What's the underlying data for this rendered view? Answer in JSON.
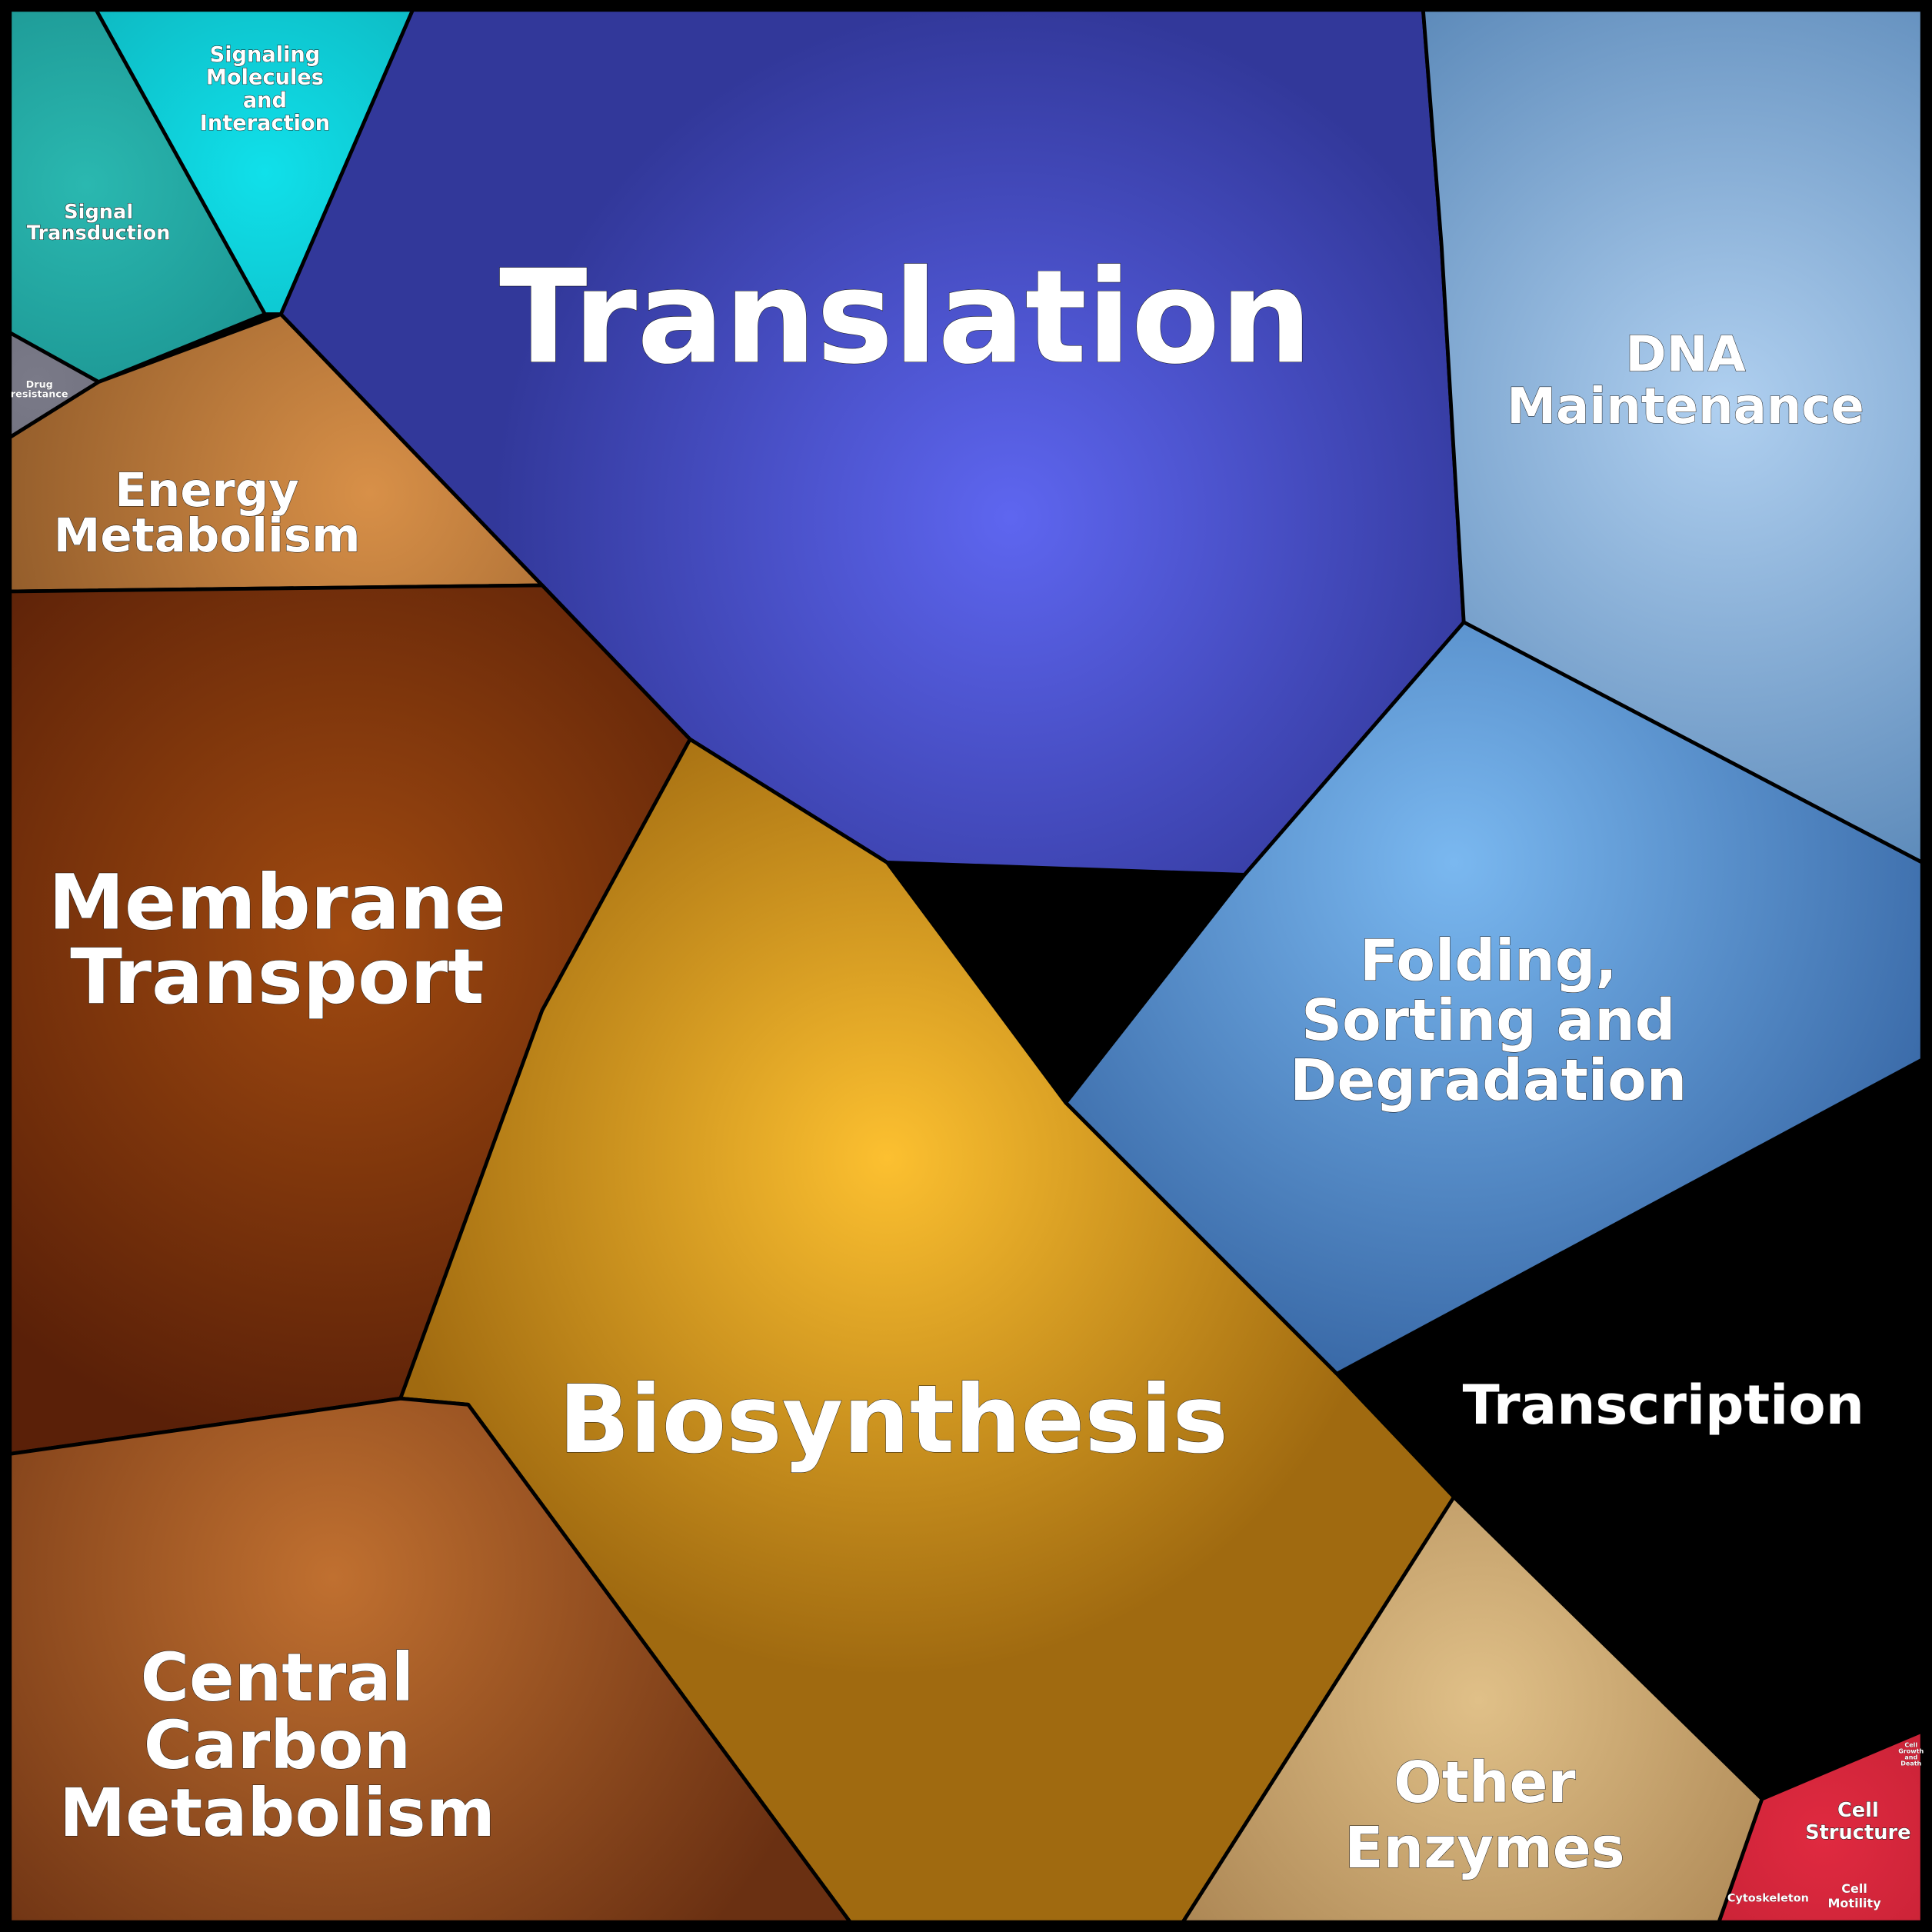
{
  "regions": [
    {
      "label": [
        "Signaling",
        "Molecules",
        "and",
        "Interaction"
      ]
    },
    {
      "label": [
        "Signal",
        "Transduction"
      ]
    },
    {
      "label": [
        "Drug",
        "resistance"
      ]
    },
    {
      "label": [
        "Energy",
        "Metabolism"
      ]
    },
    {
      "label": [
        "Translation"
      ]
    },
    {
      "label": [
        "DNA",
        "Maintenance"
      ]
    },
    {
      "label": [
        "Membrane",
        "Transport"
      ]
    },
    {
      "label": [
        "Folding,",
        "Sorting and",
        "Degradation"
      ]
    },
    {
      "label": [
        "Transcription"
      ]
    },
    {
      "label": [
        "Biosynthesis"
      ]
    },
    {
      "label": [
        "Central",
        "Carbon",
        "Metabolism"
      ]
    },
    {
      "label": [
        "Other",
        "Enzymes"
      ]
    },
    {
      "label": [
        "Cell",
        "Structure"
      ]
    },
    {
      "label": [
        "Cytoskeleton"
      ]
    },
    {
      "label": [
        "Cell",
        "Motility"
      ]
    },
    {
      "label": [
        "Cell",
        "Growth",
        "and",
        "Death"
      ]
    }
  ]
}
